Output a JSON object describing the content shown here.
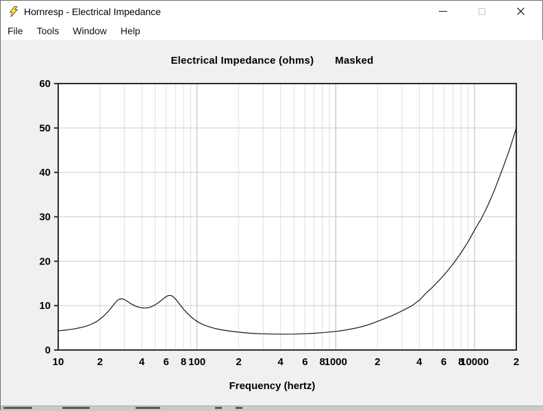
{
  "window": {
    "title": "Hornresp - Electrical Impedance"
  },
  "menubar": {
    "items": [
      {
        "label": "File"
      },
      {
        "label": "Tools"
      },
      {
        "label": "Window"
      },
      {
        "label": "Help"
      }
    ]
  },
  "chart_data": {
    "type": "line",
    "title": "Electrical Impedance (ohms)",
    "masked_label": "Masked",
    "xlabel": "Frequency (hertz)",
    "x_scale": "log",
    "x_range": [
      10,
      20000
    ],
    "y_range": [
      0,
      60
    ],
    "grid": true,
    "legend": "none",
    "y_ticks": [
      0,
      10,
      20,
      30,
      40,
      50,
      60
    ],
    "x_tick_labels": [
      {
        "label": "10",
        "f": 10
      },
      {
        "label": "2",
        "f": 20
      },
      {
        "label": "4",
        "f": 40
      },
      {
        "label": "6",
        "f": 60
      },
      {
        "label": "8",
        "f": 80
      },
      {
        "label": "100",
        "f": 100
      },
      {
        "label": "2",
        "f": 200
      },
      {
        "label": "4",
        "f": 400
      },
      {
        "label": "6",
        "f": 600
      },
      {
        "label": "8",
        "f": 800
      },
      {
        "label": "1000",
        "f": 1000
      },
      {
        "label": "2",
        "f": 2000
      },
      {
        "label": "4",
        "f": 4000
      },
      {
        "label": "6",
        "f": 6000
      },
      {
        "label": "8",
        "f": 8000
      },
      {
        "label": "10000",
        "f": 10000
      },
      {
        "label": "2",
        "f": 20000
      }
    ],
    "colors": {
      "curve": "#141414",
      "frame": "#2b2b2b",
      "grid_horizontal": "#cccccc",
      "grid_minor_vertical": "#dedede",
      "grid_major_vertical": "#b5b5b5",
      "plot_background": "#ffffff",
      "window_background": "#f0f0f0",
      "icon_yellow": "#ffe066"
    },
    "series": [
      {
        "points": [
          [
            10,
            4.35
          ],
          [
            11,
            4.45
          ],
          [
            12,
            4.6
          ],
          [
            13,
            4.75
          ],
          [
            14,
            4.95
          ],
          [
            15,
            5.15
          ],
          [
            16,
            5.4
          ],
          [
            17,
            5.7
          ],
          [
            18,
            6.05
          ],
          [
            19,
            6.45
          ],
          [
            20,
            6.95
          ],
          [
            21,
            7.5
          ],
          [
            22,
            8.1
          ],
          [
            23,
            8.75
          ],
          [
            24,
            9.45
          ],
          [
            25,
            10.15
          ],
          [
            26,
            10.8
          ],
          [
            27,
            11.3
          ],
          [
            28,
            11.5
          ],
          [
            29,
            11.5
          ],
          [
            30,
            11.35
          ],
          [
            31,
            11.1
          ],
          [
            32,
            10.8
          ],
          [
            34,
            10.3
          ],
          [
            36,
            9.9
          ],
          [
            38,
            9.65
          ],
          [
            40,
            9.5
          ],
          [
            42,
            9.45
          ],
          [
            44,
            9.5
          ],
          [
            46,
            9.65
          ],
          [
            48,
            9.9
          ],
          [
            50,
            10.2
          ],
          [
            52,
            10.55
          ],
          [
            55,
            11.1
          ],
          [
            58,
            11.7
          ],
          [
            60,
            12.05
          ],
          [
            62,
            12.25
          ],
          [
            64,
            12.3
          ],
          [
            66,
            12.2
          ],
          [
            68,
            11.9
          ],
          [
            70,
            11.5
          ],
          [
            73,
            10.8
          ],
          [
            76,
            10.05
          ],
          [
            80,
            9.2
          ],
          [
            85,
            8.3
          ],
          [
            90,
            7.55
          ],
          [
            95,
            6.95
          ],
          [
            100,
            6.45
          ],
          [
            110,
            5.75
          ],
          [
            120,
            5.3
          ],
          [
            135,
            4.85
          ],
          [
            150,
            4.55
          ],
          [
            170,
            4.3
          ],
          [
            190,
            4.1
          ],
          [
            210,
            3.95
          ],
          [
            240,
            3.8
          ],
          [
            270,
            3.7
          ],
          [
            300,
            3.65
          ],
          [
            350,
            3.6
          ],
          [
            400,
            3.58
          ],
          [
            450,
            3.58
          ],
          [
            500,
            3.6
          ],
          [
            560,
            3.65
          ],
          [
            630,
            3.7
          ],
          [
            700,
            3.78
          ],
          [
            800,
            3.9
          ],
          [
            900,
            4.05
          ],
          [
            1000,
            4.2
          ],
          [
            1120,
            4.4
          ],
          [
            1250,
            4.65
          ],
          [
            1400,
            4.95
          ],
          [
            1600,
            5.4
          ],
          [
            1800,
            5.9
          ],
          [
            2000,
            6.45
          ],
          [
            2240,
            7.05
          ],
          [
            2500,
            7.65
          ],
          [
            2800,
            8.35
          ],
          [
            3150,
            9.15
          ],
          [
            3550,
            10.0
          ],
          [
            4000,
            11.2
          ],
          [
            4500,
            12.9
          ],
          [
            5000,
            14.2
          ],
          [
            5600,
            15.8
          ],
          [
            6300,
            17.6
          ],
          [
            7100,
            19.6
          ],
          [
            8000,
            21.9
          ],
          [
            9000,
            24.4
          ],
          [
            10000,
            27.0
          ],
          [
            11200,
            29.6
          ],
          [
            12500,
            32.6
          ],
          [
            14000,
            36.2
          ],
          [
            16000,
            41.0
          ],
          [
            18000,
            45.4
          ],
          [
            20000,
            50.0
          ]
        ]
      }
    ]
  }
}
